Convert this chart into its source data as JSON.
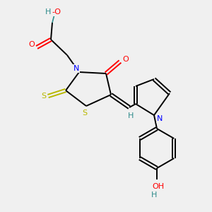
{
  "background_color": "#f0f0f0",
  "atom_colors": {
    "C": "#000000",
    "H": "#2e8b8b",
    "N": "#0000ff",
    "O": "#ff0000",
    "S": "#b8b800"
  },
  "figsize": [
    3.0,
    3.0
  ],
  "dpi": 100
}
